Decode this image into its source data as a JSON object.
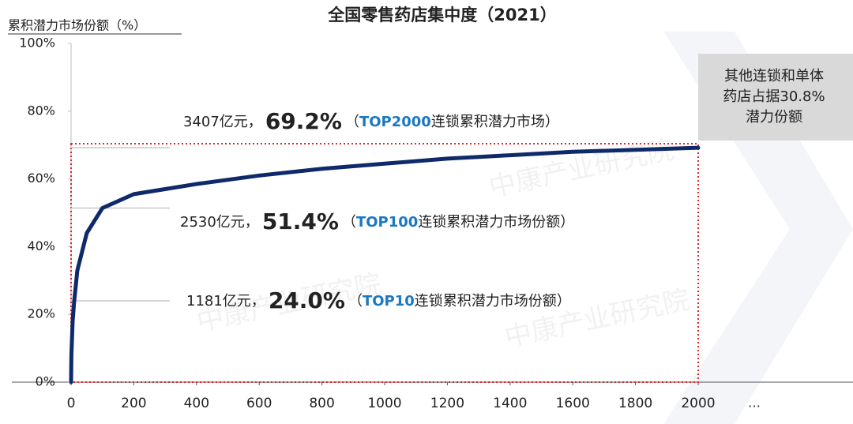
{
  "chart_data": {
    "type": "line",
    "title": "全国零售药店集中度（2021）",
    "y_axis_label": "累积潜力市场份额（%）",
    "x": [
      0,
      1,
      5,
      10,
      20,
      50,
      100,
      200,
      300,
      400,
      600,
      800,
      1000,
      1200,
      1400,
      1600,
      1800,
      2000
    ],
    "series": [
      {
        "name": "累积潜力市场份额",
        "color": "#0e2a6a",
        "values": [
          0,
          8,
          18,
          24.0,
          33,
          44,
          51.4,
          55.5,
          57,
          58.5,
          61,
          63,
          64.5,
          66,
          67,
          68,
          68.6,
          69.2
        ]
      }
    ],
    "xlim": [
      0,
      2000
    ],
    "xticks": [
      0,
      200,
      400,
      600,
      800,
      1000,
      1200,
      1400,
      1600,
      1800,
      2000
    ],
    "x_axis_end_label": "…",
    "ylim": [
      0,
      100
    ],
    "yticks": [
      {
        "value": 0,
        "label": "0%"
      },
      {
        "value": 20,
        "label": "20%"
      },
      {
        "value": 40,
        "label": "40%"
      },
      {
        "value": 60,
        "label": "60%"
      },
      {
        "value": 80,
        "label": "80%"
      },
      {
        "value": 100,
        "label": "100%"
      }
    ],
    "grid": false,
    "annotations": [
      {
        "x": 2000,
        "y": 69.2,
        "amount": "3407亿元，",
        "share": "69.2%",
        "before": "（",
        "highlight": "TOP2000",
        "after": "连锁累积潜力市场）"
      },
      {
        "x": 100,
        "y": 51.4,
        "amount": "2530亿元，",
        "share": "51.4%",
        "before": "（",
        "highlight": "TOP100",
        "after": "连锁累积潜力市场份额）"
      },
      {
        "x": 10,
        "y": 24.0,
        "amount": "1181亿元，",
        "share": "24.0%",
        "before": "（",
        "highlight": "TOP10",
        "after": "连锁累积潜力市场份额）"
      }
    ],
    "side_note": [
      "其他连锁和单体",
      "药店占据30.8%",
      "潜力份额"
    ],
    "watermark": "中康产业研究院"
  }
}
